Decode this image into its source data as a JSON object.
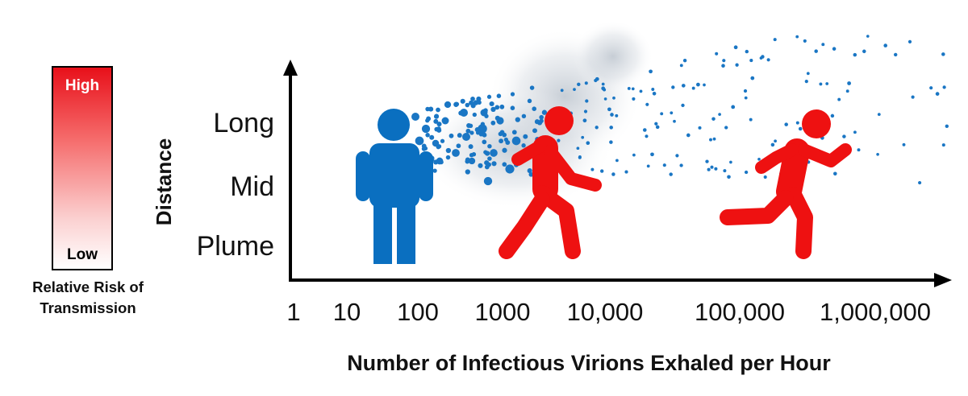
{
  "legend": {
    "high_label": "High",
    "low_label": "Low",
    "caption_line1": "Relative Risk of",
    "caption_line2": "Transmission",
    "gradient_top_color": "#e8101a",
    "gradient_bottom_color": "#ffffff"
  },
  "y_axis": {
    "title": "Distance",
    "labels": [
      "Long",
      "Mid",
      "Plume"
    ]
  },
  "x_axis": {
    "title": "Number of Infectious Virions Exhaled per Hour",
    "labels": [
      "1",
      "10",
      "100",
      "1000",
      "10,000",
      "100,000",
      "1,000,000"
    ]
  },
  "figures": [
    {
      "name": "source-person",
      "pose": "standing",
      "color": "#0a6fc0"
    },
    {
      "name": "exposed-person-near",
      "pose": "running",
      "color": "#ee1111"
    },
    {
      "name": "exposed-person-far",
      "pose": "running",
      "color": "#ee1111"
    }
  ],
  "aerosol": {
    "color": "#1a76c4",
    "cloud_color": "#9aa6b4"
  }
}
